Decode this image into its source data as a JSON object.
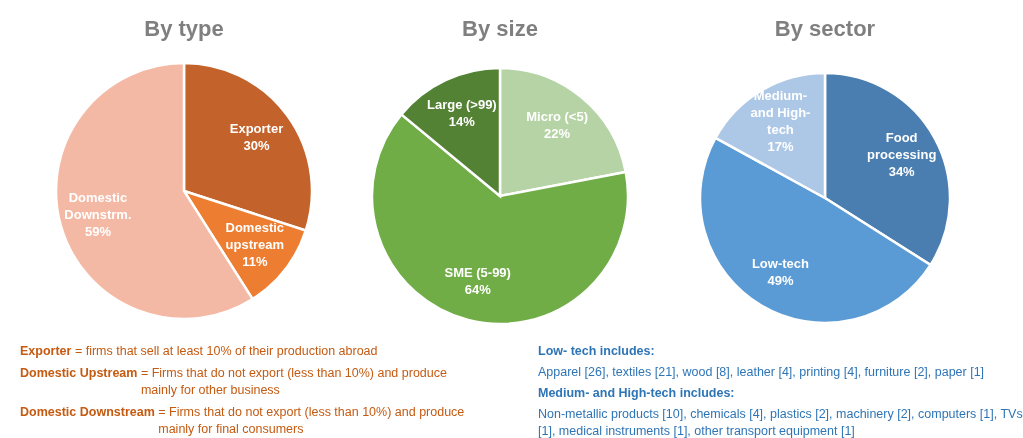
{
  "chart_data": [
    {
      "type": "pie",
      "title": "By type",
      "categories": [
        "Exporter",
        "Domestic upstream",
        "Domestic Downstrm."
      ],
      "values": [
        30,
        11,
        59
      ],
      "colors": [
        "#c3622a",
        "#ed7d31",
        "#f4b9a4"
      ],
      "value_labels": [
        "30%",
        "11%",
        "59%"
      ],
      "annotations": [
        "Exporter = firms that sell at least 10% of their production abroad",
        "Domestic Upstream = Firms that do not export (less than 10%) and produce mainly for other business",
        "Domestic Downstream = Firms that do not export (less than 10%) and produce mainly for final consumers"
      ]
    },
    {
      "type": "pie",
      "title": "By size",
      "categories": [
        "Micro (<5)",
        "SME (5-99)",
        "Large (>99)"
      ],
      "values": [
        22,
        64,
        14
      ],
      "colors": [
        "#b5d3a5",
        "#70ad47",
        "#548235"
      ],
      "value_labels": [
        "22%",
        "64%",
        "14%"
      ]
    },
    {
      "type": "pie",
      "title": "By sector",
      "categories": [
        "Food processing",
        "Low-tech",
        "Medium- and High-tech"
      ],
      "values": [
        34,
        49,
        17
      ],
      "colors": [
        "#4a7eb0",
        "#5b9bd5",
        "#adc8e6"
      ],
      "value_labels": [
        "34%",
        "49%",
        "17%"
      ],
      "annotations": [
        "Low- tech includes:",
        "Apparel [26], textiles [21], wood [8], leather [4], printing [4], furniture [2], paper [1]",
        "Medium- and High-tech includes:",
        "Non-metallic products [10], chemicals [4], plastics [2], machinery [2], computers [1], TVs [1], medical instruments [1], other transport equipment [1]"
      ]
    }
  ]
}
